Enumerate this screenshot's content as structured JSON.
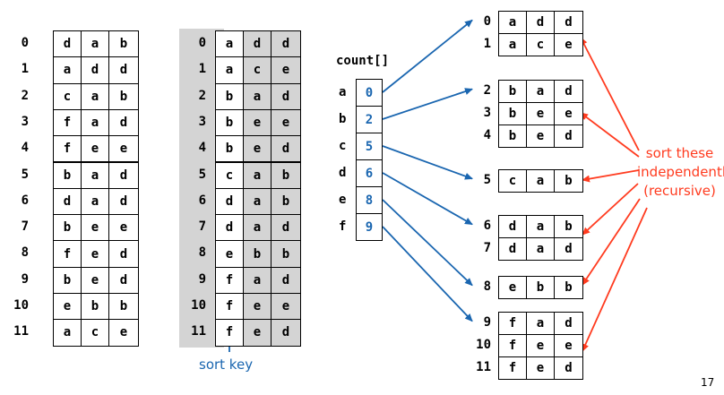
{
  "table1": {
    "rows": [
      {
        "index": "0",
        "chars": [
          "d",
          "a",
          "b"
        ]
      },
      {
        "index": "1",
        "chars": [
          "a",
          "d",
          "d"
        ]
      },
      {
        "index": "2",
        "chars": [
          "c",
          "a",
          "b"
        ]
      },
      {
        "index": "3",
        "chars": [
          "f",
          "a",
          "d"
        ]
      },
      {
        "index": "4",
        "chars": [
          "f",
          "e",
          "e"
        ]
      },
      {
        "index": "5",
        "chars": [
          "b",
          "a",
          "d"
        ]
      },
      {
        "index": "6",
        "chars": [
          "d",
          "a",
          "d"
        ]
      },
      {
        "index": "7",
        "chars": [
          "b",
          "e",
          "e"
        ]
      },
      {
        "index": "8",
        "chars": [
          "f",
          "e",
          "d"
        ]
      },
      {
        "index": "9",
        "chars": [
          "b",
          "e",
          "d"
        ]
      },
      {
        "index": "10",
        "chars": [
          "e",
          "b",
          "b"
        ]
      },
      {
        "index": "11",
        "chars": [
          "a",
          "c",
          "e"
        ]
      }
    ]
  },
  "table2": {
    "rows": [
      {
        "index": "0",
        "chars": [
          "a",
          "d",
          "d"
        ]
      },
      {
        "index": "1",
        "chars": [
          "a",
          "c",
          "e"
        ]
      },
      {
        "index": "2",
        "chars": [
          "b",
          "a",
          "d"
        ]
      },
      {
        "index": "3",
        "chars": [
          "b",
          "e",
          "e"
        ]
      },
      {
        "index": "4",
        "chars": [
          "b",
          "e",
          "d"
        ]
      },
      {
        "index": "5",
        "chars": [
          "c",
          "a",
          "b"
        ]
      },
      {
        "index": "6",
        "chars": [
          "d",
          "a",
          "b"
        ]
      },
      {
        "index": "7",
        "chars": [
          "d",
          "a",
          "d"
        ]
      },
      {
        "index": "8",
        "chars": [
          "e",
          "b",
          "b"
        ]
      },
      {
        "index": "9",
        "chars": [
          "f",
          "a",
          "d"
        ]
      },
      {
        "index": "10",
        "chars": [
          "f",
          "e",
          "e"
        ]
      },
      {
        "index": "11",
        "chars": [
          "f",
          "e",
          "d"
        ]
      }
    ],
    "sort_key_label": "sort key"
  },
  "count": {
    "label": "count[]",
    "letters": [
      "a",
      "b",
      "c",
      "d",
      "e",
      "f"
    ],
    "values": [
      "0",
      "2",
      "5",
      "6",
      "8",
      "9"
    ]
  },
  "groups": [
    {
      "rows": [
        {
          "index": "0",
          "chars": [
            "a",
            "d",
            "d"
          ]
        },
        {
          "index": "1",
          "chars": [
            "a",
            "c",
            "e"
          ]
        }
      ]
    },
    {
      "rows": [
        {
          "index": "2",
          "chars": [
            "b",
            "a",
            "d"
          ]
        },
        {
          "index": "3",
          "chars": [
            "b",
            "e",
            "e"
          ]
        },
        {
          "index": "4",
          "chars": [
            "b",
            "e",
            "d"
          ]
        }
      ]
    },
    {
      "rows": [
        {
          "index": "5",
          "chars": [
            "c",
            "a",
            "b"
          ]
        }
      ]
    },
    {
      "rows": [
        {
          "index": "6",
          "chars": [
            "d",
            "a",
            "b"
          ]
        },
        {
          "index": "7",
          "chars": [
            "d",
            "a",
            "d"
          ]
        }
      ]
    },
    {
      "rows": [
        {
          "index": "8",
          "chars": [
            "e",
            "b",
            "b"
          ]
        }
      ]
    },
    {
      "rows": [
        {
          "index": "9",
          "chars": [
            "f",
            "a",
            "d"
          ]
        },
        {
          "index": "10",
          "chars": [
            "f",
            "e",
            "e"
          ]
        },
        {
          "index": "11",
          "chars": [
            "f",
            "e",
            "d"
          ]
        }
      ]
    }
  ],
  "annotation": {
    "lines": [
      "sort these",
      "independently",
      "(recursive)"
    ]
  },
  "page_number": "17",
  "colors": {
    "blue": "#1a66b0",
    "red": "#ff3b1f",
    "shade": "#d4d4d4"
  }
}
